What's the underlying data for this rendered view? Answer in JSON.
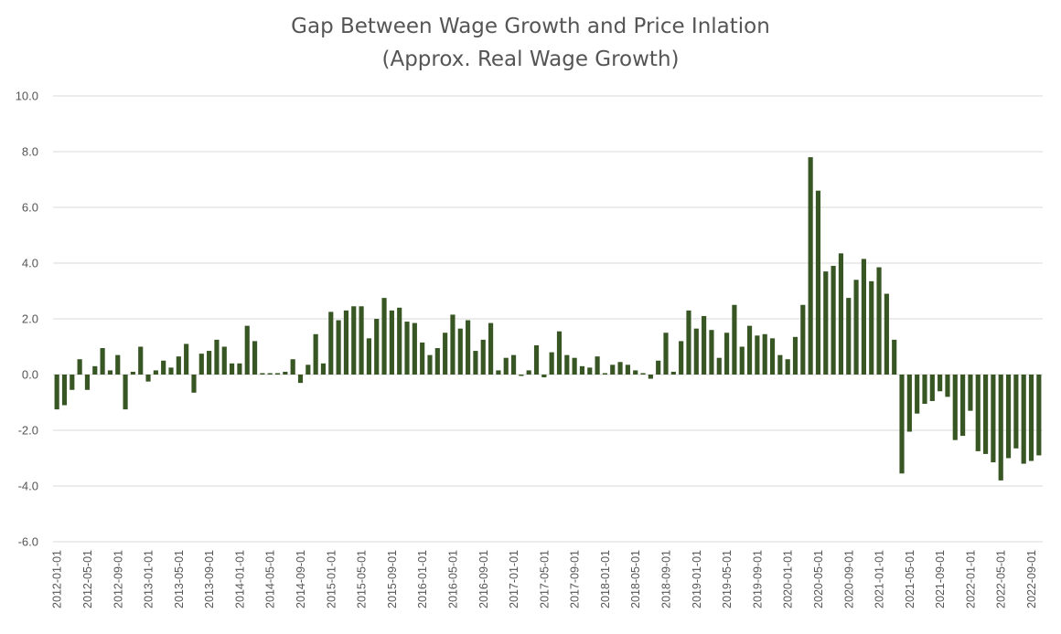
{
  "chart_data": {
    "type": "bar",
    "title": "Gap Between Wage Growth and Price Inlation",
    "subtitle": "(Approx. Real Wage Growth)",
    "xlabel": "",
    "ylabel": "",
    "ylim": [
      -6.0,
      10.0
    ],
    "yticks": [
      "10.0",
      "8.0",
      "6.0",
      "4.0",
      "2.0",
      "0.0",
      "-2.0",
      "-4.0",
      "-6.0"
    ],
    "grid": true,
    "legend": "none",
    "bar_color": "#375623",
    "start_month": "2012-01",
    "tick_labels": [
      "2012-01-01",
      "2012-05-01",
      "2012-09-01",
      "2013-01-01",
      "2013-05-01",
      "2013-09-01",
      "2014-01-01",
      "2014-05-01",
      "2014-09-01",
      "2015-01-01",
      "2015-05-01",
      "2015-09-01",
      "2016-01-01",
      "2016-05-01",
      "2016-09-01",
      "2017-01-01",
      "2017-05-01",
      "2017-09-01",
      "2018-01-01",
      "2018-05-01",
      "2018-09-01",
      "2019-01-01",
      "2019-05-01",
      "2019-09-01",
      "2020-01-01",
      "2020-05-01",
      "2020-09-01",
      "2021-01-01",
      "2021-05-01",
      "2021-09-01",
      "2022-01-01",
      "2022-05-01",
      "2022-09-01"
    ],
    "values": [
      -1.25,
      -1.1,
      -0.55,
      0.55,
      -0.55,
      0.3,
      0.95,
      0.15,
      0.7,
      -1.25,
      0.1,
      1.0,
      -0.25,
      0.15,
      0.5,
      0.25,
      0.65,
      1.1,
      -0.65,
      0.75,
      0.85,
      1.25,
      1.0,
      0.4,
      0.4,
      1.75,
      1.2,
      0.05,
      0.05,
      0.05,
      0.1,
      0.55,
      -0.3,
      0.35,
      1.45,
      0.4,
      2.25,
      1.95,
      2.3,
      2.45,
      2.45,
      1.3,
      2.0,
      2.75,
      2.3,
      2.4,
      1.9,
      1.85,
      1.15,
      0.7,
      0.95,
      1.5,
      2.15,
      1.65,
      1.95,
      0.85,
      1.25,
      1.85,
      0.15,
      0.6,
      0.7,
      -0.05,
      0.15,
      1.05,
      -0.1,
      0.8,
      1.55,
      0.7,
      0.6,
      0.3,
      0.25,
      0.65,
      0.05,
      0.35,
      0.45,
      0.35,
      0.15,
      0.05,
      -0.15,
      0.5,
      1.5,
      0.1,
      1.2,
      2.3,
      1.65,
      2.1,
      1.6,
      0.6,
      1.5,
      2.5,
      1.0,
      1.75,
      1.4,
      1.45,
      1.3,
      0.7,
      0.55,
      1.35,
      2.5,
      7.8,
      6.6,
      3.7,
      3.9,
      4.35,
      2.75,
      3.4,
      4.15,
      3.35,
      3.85,
      2.9,
      1.25,
      -3.55,
      -2.05,
      -1.4,
      -1.05,
      -0.95,
      -0.6,
      -0.8,
      -2.35,
      -2.2,
      -1.3,
      -2.75,
      -2.85,
      -3.15,
      -3.8,
      -3.0,
      -2.65,
      -3.2,
      -3.1,
      -2.9
    ]
  }
}
